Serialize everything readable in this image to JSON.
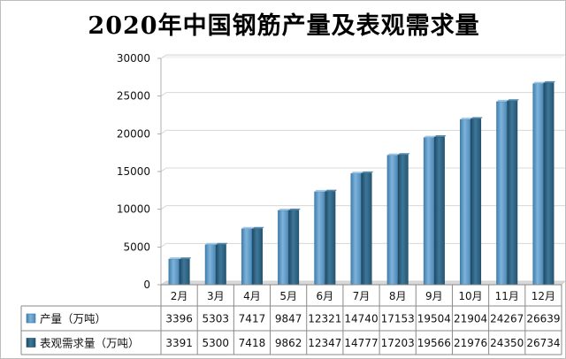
{
  "chart_data": {
    "type": "bar",
    "title": "2020年中国钢筋产量及表观需求量",
    "categories": [
      "2月",
      "3月",
      "4月",
      "5月",
      "6月",
      "7月",
      "8月",
      "9月",
      "10月",
      "11月",
      "12月"
    ],
    "series": [
      {
        "name": "产量（万吨）",
        "color": "#5b97c4",
        "values": [
          3396,
          5303,
          7417,
          9847,
          12321,
          14740,
          17153,
          19504,
          21904,
          24267,
          26639
        ]
      },
      {
        "name": "表观需求量（万吨）",
        "color": "#2b5f80",
        "values": [
          3391,
          5300,
          7418,
          9862,
          12347,
          14777,
          17203,
          19566,
          21976,
          24350,
          26734
        ]
      }
    ],
    "ylim": [
      0,
      30000
    ],
    "yticks": [
      0,
      5000,
      10000,
      15000,
      20000,
      25000,
      30000
    ],
    "grid": true,
    "legend": "data-table"
  }
}
